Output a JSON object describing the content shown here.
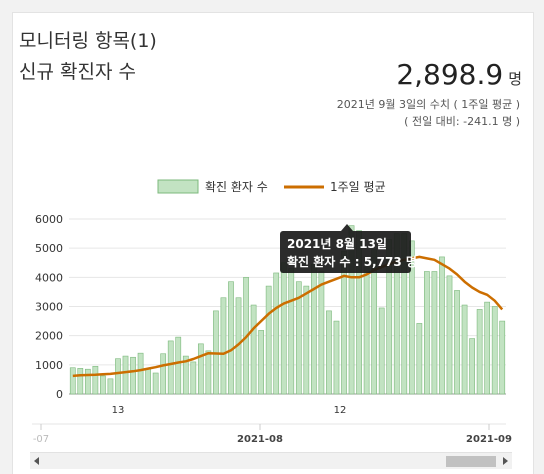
{
  "card": {
    "title": "모니터링 항목(1)",
    "subtitle": "신규 확진자 수",
    "value": "2,898.9",
    "unit": "명",
    "meta_line1": "2021년 9월 3일의 수치 ( 1주일 평균 )",
    "meta_line2": "( 전일 대비: -241.1 명 )"
  },
  "tooltip": {
    "date": "2021년 8월 13일",
    "text": "확진 환자 수 : 5,773 명"
  },
  "colors": {
    "bar_fill": "#c2e3c2",
    "bar_stroke": "#7cb87c",
    "line": "#cc6e00",
    "tooltip_bg": "#1a1a1a"
  },
  "chart_data": {
    "type": "bar",
    "title": "",
    "legend": [
      {
        "name": "확진 환자 수",
        "type": "bar"
      },
      {
        "name": "1주일 평균",
        "type": "line"
      }
    ],
    "legend_position": "top-center",
    "ylim": [
      0,
      6000
    ],
    "y_ticks": [
      "0",
      "1000",
      "2000",
      "3000",
      "4000",
      "5000",
      "6000"
    ],
    "x_day_ticks": [
      "13",
      "12"
    ],
    "x_month_ticks": [
      "-07",
      "2021-08",
      "2021-09"
    ],
    "grid": true,
    "series": [
      {
        "name": "확진 환자 수",
        "type": "bar",
        "values": [
          900,
          880,
          850,
          950,
          620,
          520,
          1210,
          1300,
          1260,
          1400,
          880,
          720,
          1380,
          1820,
          1950,
          1300,
          1100,
          1720,
          1480,
          2850,
          3300,
          3850,
          3300,
          4000,
          3050,
          2180,
          3700,
          4150,
          4500,
          4300,
          3850,
          3700,
          4450,
          4200,
          2850,
          2500,
          4900,
          5773,
          5600,
          4600,
          4950,
          2950,
          5300,
          5500,
          5500,
          5250,
          2420,
          4200,
          4200,
          4700,
          4050,
          3550,
          3050,
          1900,
          2900,
          3150,
          3000,
          2500
        ],
        "value_labels": []
      },
      {
        "name": "1주일 평균",
        "type": "line",
        "values": [
          620,
          640,
          650,
          660,
          680,
          690,
          720,
          750,
          780,
          820,
          870,
          920,
          980,
          1030,
          1080,
          1120,
          1200,
          1300,
          1400,
          1390,
          1380,
          1500,
          1700,
          1950,
          2250,
          2500,
          2750,
          2950,
          3100,
          3200,
          3300,
          3450,
          3600,
          3750,
          3850,
          3950,
          4050,
          4000,
          4000,
          4100,
          4250,
          4350,
          4450,
          4550,
          4600,
          4650,
          4700,
          4650,
          4600,
          4450,
          4300,
          4100,
          3850,
          3650,
          3500,
          3400,
          3200,
          2899
        ]
      }
    ]
  },
  "scrollbar": {}
}
